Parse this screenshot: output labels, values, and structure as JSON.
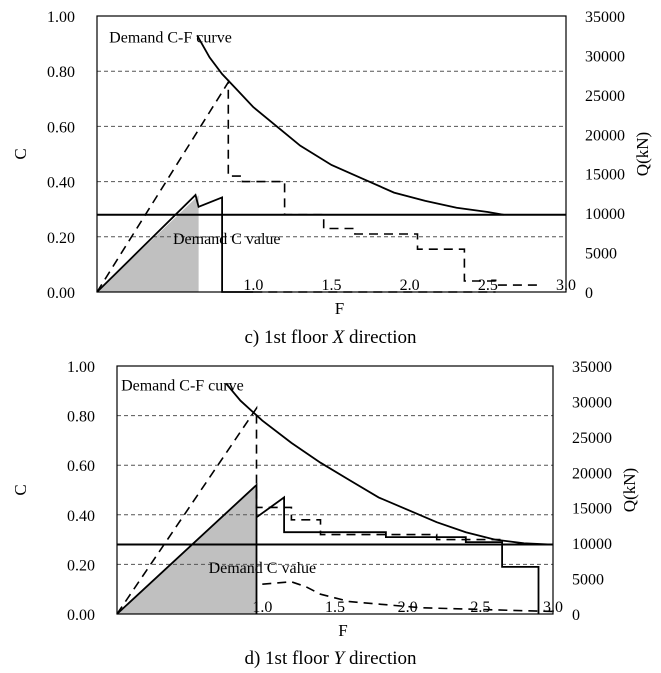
{
  "chart_data": [
    {
      "type": "line",
      "caption": {
        "prefix": "c) 1st floor ",
        "axis": "X",
        "suffix": " direction"
      },
      "xlabel": "F",
      "ylabel": "C",
      "y2label": "Q(kN)",
      "xlim": [
        0.0,
        3.0
      ],
      "ylim": [
        0.0,
        1.0
      ],
      "y2lim": [
        0,
        35000
      ],
      "y_ticks": [
        "0.00",
        "0.20",
        "0.40",
        "0.60",
        "0.80",
        "1.00"
      ],
      "y2_ticks": [
        "0",
        "5000",
        "10000",
        "15000",
        "20000",
        "25000",
        "30000",
        "35000"
      ],
      "x_ticks": [
        {
          "v": 1.0,
          "label": "1.0"
        },
        {
          "v": 1.5,
          "label": "1.5"
        },
        {
          "v": 2.0,
          "label": "2.0"
        },
        {
          "v": 2.5,
          "label": "2.5"
        },
        {
          "v": 3.0,
          "label": "3.0"
        }
      ],
      "grid": "horizontal dashed",
      "annotations": [
        {
          "text": "Demand C-F curve",
          "x": 0.47,
          "y": 0.925
        },
        {
          "text": "Demand C value",
          "x": 0.83,
          "y": 0.195
        }
      ],
      "demand_c_value": 0.28,
      "series": [
        {
          "style": "dashed",
          "axis": "C",
          "points": [
            [
              0.0,
              0.0
            ],
            [
              0.84,
              0.76
            ],
            [
              0.84,
              0.42
            ],
            [
              0.93,
              0.42
            ],
            [
              0.93,
              0.4
            ],
            [
              1.2,
              0.4
            ],
            [
              1.2,
              0.28
            ],
            [
              1.45,
              0.28
            ],
            [
              1.45,
              0.23
            ],
            [
              1.65,
              0.23
            ],
            [
              1.65,
              0.21
            ],
            [
              2.05,
              0.21
            ],
            [
              2.05,
              0.155
            ],
            [
              2.35,
              0.155
            ],
            [
              2.35,
              0.04
            ],
            [
              2.55,
              0.04
            ],
            [
              2.55,
              0.025
            ],
            [
              2.85,
              0.025
            ]
          ]
        },
        {
          "style": "solid",
          "axis": "C",
          "label": "Demand C-F curve",
          "points": [
            [
              0.64,
              0.93
            ],
            [
              0.72,
              0.85
            ],
            [
              0.8,
              0.79
            ],
            [
              0.9,
              0.73
            ],
            [
              1.0,
              0.67
            ],
            [
              1.15,
              0.6
            ],
            [
              1.3,
              0.53
            ],
            [
              1.5,
              0.46
            ],
            [
              1.7,
              0.41
            ],
            [
              1.9,
              0.36
            ],
            [
              2.1,
              0.33
            ],
            [
              2.3,
              0.305
            ],
            [
              2.5,
              0.29
            ],
            [
              2.6,
              0.28
            ]
          ]
        },
        {
          "style": "solid",
          "axis": "Q(kN)",
          "points": [
            [
              0.0,
              0
            ],
            [
              0.63,
              12300
            ],
            [
              0.65,
              10800
            ],
            [
              0.8,
              12000
            ],
            [
              0.8,
              0
            ],
            [
              1.0,
              0
            ],
            [
              1.0,
              0
            ],
            [
              1.0,
              0
            ],
            [
              1.0,
              0
            ]
          ]
        },
        {
          "style": "dashed",
          "axis": "Q(kN)",
          "points": [
            [
              1.0,
              0
            ],
            [
              1.05,
              0
            ],
            [
              1.3,
              0
            ],
            [
              1.6,
              0
            ],
            [
              1.9,
              0
            ],
            [
              2.2,
              0
            ],
            [
              2.4,
              0
            ],
            [
              2.55,
              0
            ]
          ]
        }
      ],
      "shaded_area": {
        "from_x": 0.0,
        "to_x": 0.65,
        "peak_c": 0.35
      }
    },
    {
      "type": "line",
      "caption": {
        "prefix": "d) 1st floor ",
        "axis": "Y",
        "suffix": " direction"
      },
      "xlabel": "F",
      "ylabel": "C",
      "y2label": "Q(kN)",
      "xlim": [
        0.0,
        3.0
      ],
      "ylim": [
        0.0,
        1.0
      ],
      "y2lim": [
        0,
        35000
      ],
      "y_ticks": [
        "0.00",
        "0.20",
        "0.40",
        "0.60",
        "0.80",
        "1.00"
      ],
      "y2_ticks": [
        "0",
        "5000",
        "10000",
        "15000",
        "20000",
        "25000",
        "30000",
        "35000"
      ],
      "x_ticks": [
        {
          "v": 1.0,
          "label": "1.0"
        },
        {
          "v": 1.5,
          "label": "1.5"
        },
        {
          "v": 2.0,
          "label": "2.0"
        },
        {
          "v": 2.5,
          "label": "2.5"
        },
        {
          "v": 3.0,
          "label": "3.0"
        }
      ],
      "grid": "horizontal dashed",
      "annotations": [
        {
          "text": "Demand C-F curve",
          "x": 0.45,
          "y": 0.925
        },
        {
          "text": "Demand C value",
          "x": 1.0,
          "y": 0.19
        }
      ],
      "demand_c_value": 0.28,
      "series": [
        {
          "style": "dashed",
          "axis": "C",
          "points": [
            [
              0.0,
              0.0
            ],
            [
              0.96,
              0.83
            ],
            [
              0.96,
              0.43
            ],
            [
              1.2,
              0.43
            ],
            [
              1.2,
              0.38
            ],
            [
              1.4,
              0.38
            ],
            [
              1.4,
              0.32
            ],
            [
              2.2,
              0.32
            ],
            [
              2.2,
              0.3
            ],
            [
              2.65,
              0.3
            ],
            [
              2.65,
              0.28
            ],
            [
              3.0,
              0.28
            ]
          ]
        },
        {
          "style": "solid",
          "axis": "C",
          "label": "Demand C-F curve",
          "points": [
            [
              0.75,
              0.93
            ],
            [
              0.85,
              0.86
            ],
            [
              1.0,
              0.78
            ],
            [
              1.2,
              0.69
            ],
            [
              1.4,
              0.61
            ],
            [
              1.6,
              0.54
            ],
            [
              1.8,
              0.47
            ],
            [
              2.0,
              0.42
            ],
            [
              2.2,
              0.37
            ],
            [
              2.4,
              0.33
            ],
            [
              2.6,
              0.3
            ],
            [
              2.8,
              0.285
            ],
            [
              3.0,
              0.28
            ]
          ]
        },
        {
          "style": "solid",
          "axis": "C",
          "points": [
            [
              0.0,
              0.0
            ],
            [
              0.96,
              0.52
            ],
            [
              0.96,
              0.0
            ]
          ]
        },
        {
          "style": "solid",
          "axis": "C",
          "points": [
            [
              0.96,
              0.39
            ],
            [
              1.15,
              0.47
            ],
            [
              1.15,
              0.33
            ],
            [
              1.85,
              0.33
            ],
            [
              1.85,
              0.31
            ],
            [
              2.4,
              0.31
            ],
            [
              2.4,
              0.29
            ],
            [
              2.65,
              0.29
            ],
            [
              2.65,
              0.19
            ],
            [
              2.9,
              0.19
            ],
            [
              2.9,
              0.0
            ]
          ]
        },
        {
          "style": "dashed",
          "axis": "C",
          "points": [
            [
              1.0,
              0.12
            ],
            [
              1.2,
              0.13
            ],
            [
              1.3,
              0.11
            ],
            [
              1.4,
              0.08
            ],
            [
              1.6,
              0.05
            ],
            [
              1.8,
              0.04
            ],
            [
              2.1,
              0.025
            ],
            [
              2.4,
              0.02
            ],
            [
              2.7,
              0.015
            ],
            [
              3.0,
              0.01
            ]
          ]
        }
      ],
      "shaded_area": {
        "from_x": 0.0,
        "to_x": 0.96,
        "peak_c": 0.52
      }
    }
  ]
}
